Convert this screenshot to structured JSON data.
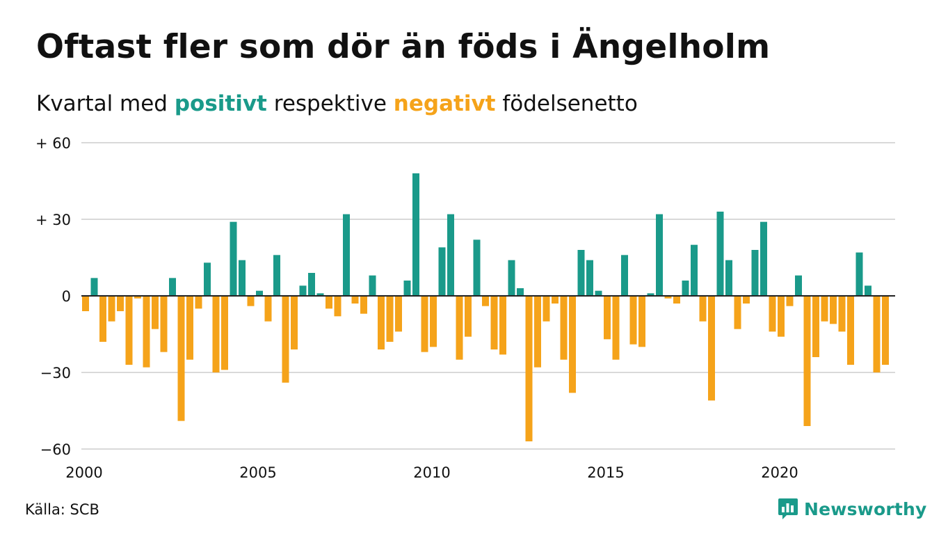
{
  "header": {
    "title": "Oftast fler som dör än föds i Ängelholm",
    "subtitle_pre": "Kvartal med",
    "subtitle_pos": "positivt",
    "subtitle_mid": "respektive",
    "subtitle_neg": "negativt",
    "subtitle_post": "födelsenetto"
  },
  "footer": {
    "source": "Källa: SCB",
    "brand": "Newsworthy"
  },
  "colors": {
    "positive": "#1a9a8a",
    "negative": "#f5a31a",
    "grid": "#d9d9d9",
    "zero_line": "#222222",
    "text": "#111111"
  },
  "chart_data": {
    "type": "bar",
    "x_unit": "quarter",
    "start": "2000 Q1",
    "ylim": [
      -60,
      60
    ],
    "y_ticks": [
      60,
      30,
      0,
      -30,
      -60
    ],
    "y_tick_labels": [
      "+ 60",
      "+ 30",
      "0",
      "−30",
      "−60"
    ],
    "x_ticks": [
      2000,
      2005,
      2010,
      2015,
      2020
    ],
    "x_tick_labels": [
      "2000",
      "2005",
      "2010",
      "2015",
      "2020"
    ],
    "grid": true,
    "values": [
      -6,
      7,
      -18,
      -10,
      -6,
      -27,
      -1,
      -28,
      -13,
      -22,
      7,
      -49,
      -25,
      -5,
      13,
      -30,
      -29,
      29,
      14,
      -4,
      2,
      -10,
      16,
      -34,
      -21,
      4,
      9,
      1,
      -5,
      -8,
      32,
      -3,
      -7,
      8,
      -21,
      -18,
      -14,
      6,
      48,
      -22,
      -20,
      19,
      32,
      -25,
      -16,
      22,
      -4,
      -21,
      -23,
      14,
      3,
      -57,
      -28,
      -10,
      -3,
      -25,
      -38,
      18,
      14,
      2,
      -17,
      -25,
      16,
      -19,
      -20,
      1,
      32,
      -1,
      -3,
      6,
      20,
      -10,
      -41,
      33,
      14,
      -13,
      -3,
      18,
      29,
      -14,
      -16,
      -4,
      8,
      -51,
      -24,
      -10,
      -11,
      -14,
      -27,
      17,
      4,
      -30,
      -27
    ]
  }
}
